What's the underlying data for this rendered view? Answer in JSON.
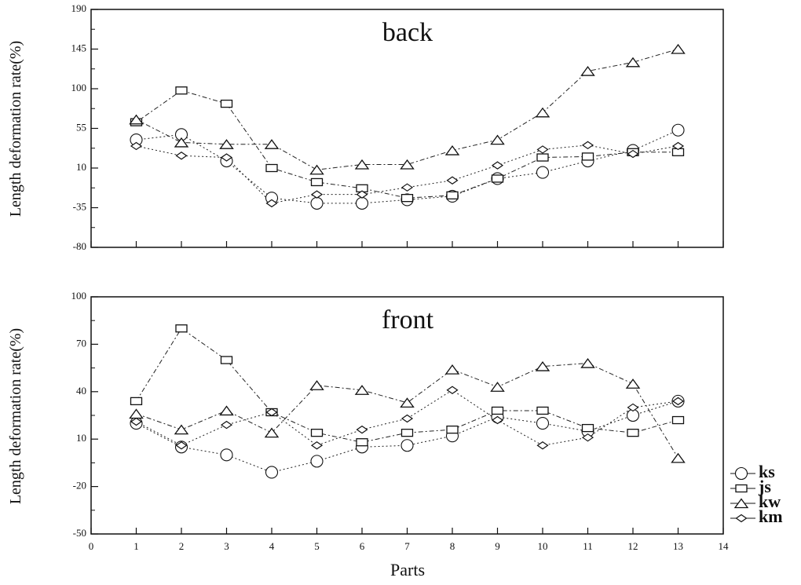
{
  "chart_data": [
    {
      "type": "line",
      "title": "back",
      "ylabel": "Length deformation rate(%)",
      "xlabel": "",
      "x": [
        1,
        2,
        3,
        4,
        5,
        6,
        7,
        8,
        9,
        10,
        11,
        12,
        13
      ],
      "xlim": [
        0,
        14
      ],
      "ylim": [
        -80,
        190
      ],
      "yticks": [
        "190",
        "145",
        "100",
        "55",
        "10",
        "-35",
        "-80"
      ],
      "ytick_values": [
        190,
        145,
        100,
        55,
        10,
        -35,
        -80
      ],
      "series": [
        {
          "name": "ks",
          "marker": "circle",
          "values": [
            42,
            48,
            18,
            -24,
            -30,
            -30,
            -26,
            -22,
            -2,
            5,
            18,
            30,
            53
          ]
        },
        {
          "name": "js",
          "marker": "square",
          "values": [
            62,
            98,
            83,
            10,
            -6,
            -13,
            -24,
            -21,
            -2,
            22,
            23,
            28,
            28
          ]
        },
        {
          "name": "kw",
          "marker": "triangle",
          "values": [
            65,
            39,
            37,
            37,
            8,
            14,
            14,
            30,
            42,
            73,
            120,
            130,
            145
          ]
        },
        {
          "name": "km",
          "marker": "diamond",
          "values": [
            35,
            24,
            22,
            -30,
            -20,
            -20,
            -12,
            -4,
            13,
            31,
            36,
            26,
            35
          ]
        }
      ]
    },
    {
      "type": "line",
      "title": "front",
      "ylabel": "Length deformation rate(%)",
      "xlabel": "Parts",
      "x": [
        1,
        2,
        3,
        4,
        5,
        6,
        7,
        8,
        9,
        10,
        11,
        12,
        13
      ],
      "xlim": [
        0,
        14
      ],
      "ylim": [
        -50,
        100
      ],
      "xticks": [
        "0",
        "1",
        "2",
        "3",
        "4",
        "5",
        "6",
        "7",
        "8",
        "9",
        "10",
        "11",
        "12",
        "13",
        "14"
      ],
      "yticks": [
        "100",
        "70",
        "40",
        "10",
        "-20",
        "-50"
      ],
      "ytick_values": [
        100,
        70,
        40,
        10,
        -20,
        -50
      ],
      "series": [
        {
          "name": "ks",
          "marker": "circle",
          "values": [
            20,
            5,
            0,
            -11,
            -4,
            5,
            6,
            12,
            24,
            20,
            15,
            25,
            34
          ]
        },
        {
          "name": "js",
          "marker": "square",
          "values": [
            34,
            80,
            60,
            27,
            14,
            8,
            14,
            16,
            28,
            28,
            17,
            14,
            22
          ]
        },
        {
          "name": "kw",
          "marker": "triangle",
          "values": [
            26,
            16,
            28,
            14,
            44,
            41,
            33,
            54,
            43,
            56,
            58,
            45,
            -2
          ]
        },
        {
          "name": "km",
          "marker": "diamond",
          "values": [
            21,
            6,
            19,
            27,
            6,
            16,
            23,
            41,
            22,
            6,
            11,
            30,
            34
          ]
        }
      ]
    }
  ],
  "legend": [
    {
      "label": "ks",
      "marker": "circle"
    },
    {
      "label": "js",
      "marker": "square"
    },
    {
      "label": "kw",
      "marker": "triangle"
    },
    {
      "label": "km",
      "marker": "diamond"
    }
  ]
}
